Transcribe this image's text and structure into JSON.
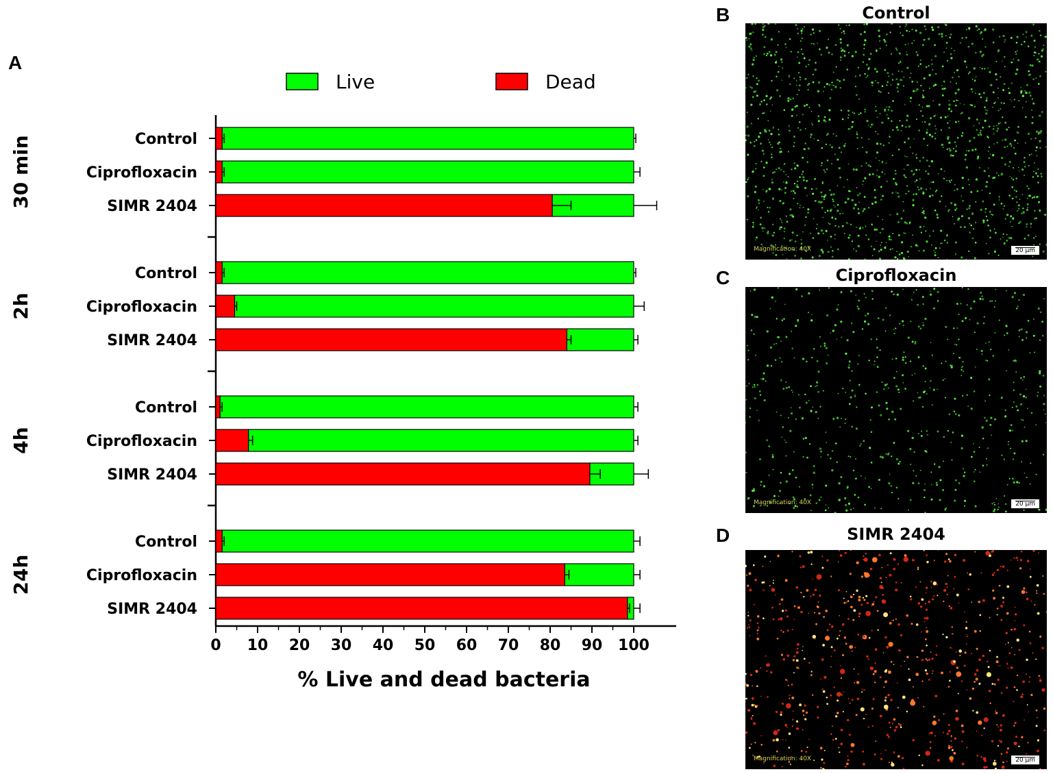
{
  "panel_a": {
    "letter": "A"
  },
  "chart_data": {
    "type": "bar",
    "orientation": "horizontal",
    "stacked": true,
    "xlabel": "% Live and dead bacteria",
    "xlim": [
      0,
      110
    ],
    "xticks": [
      0,
      10,
      20,
      30,
      40,
      50,
      60,
      70,
      80,
      90,
      100
    ],
    "legend_placement": "top",
    "series": [
      {
        "name": "Live",
        "color": "#00ff00"
      },
      {
        "name": "Dead",
        "color": "#ff0000"
      }
    ],
    "groups": [
      {
        "label": "30 min",
        "rows": [
          {
            "category": "Control",
            "dead": 1.5,
            "live": 98.5,
            "dead_err": 0.5,
            "total_err": 0.5
          },
          {
            "category": "Ciprofloxacin",
            "dead": 1.5,
            "live": 98.5,
            "dead_err": 0.5,
            "total_err": 1.5
          },
          {
            "category": "SIMR 2404",
            "dead": 80.5,
            "live": 19.5,
            "dead_err": 4.5,
            "total_err": 5.5
          }
        ]
      },
      {
        "label": "2h",
        "rows": [
          {
            "category": "Control",
            "dead": 1.5,
            "live": 98.5,
            "dead_err": 0.5,
            "total_err": 0.5
          },
          {
            "category": "Ciprofloxacin",
            "dead": 4.5,
            "live": 95.5,
            "dead_err": 0.5,
            "total_err": 2.5
          },
          {
            "category": "SIMR 2404",
            "dead": 84.0,
            "live": 16.0,
            "dead_err": 1.0,
            "total_err": 1.0
          }
        ]
      },
      {
        "label": "4h",
        "rows": [
          {
            "category": "Control",
            "dead": 1.0,
            "live": 99.0,
            "dead_err": 0.5,
            "total_err": 1.0
          },
          {
            "category": "Ciprofloxacin",
            "dead": 7.8,
            "live": 92.2,
            "dead_err": 1.0,
            "total_err": 1.0
          },
          {
            "category": "SIMR 2404",
            "dead": 89.5,
            "live": 10.5,
            "dead_err": 2.5,
            "total_err": 3.5
          }
        ]
      },
      {
        "label": "24h",
        "rows": [
          {
            "category": "Control",
            "dead": 1.5,
            "live": 98.5,
            "dead_err": 0.5,
            "total_err": 1.5
          },
          {
            "category": "Ciprofloxacin",
            "dead": 83.5,
            "live": 16.5,
            "dead_err": 1.0,
            "total_err": 1.5
          },
          {
            "category": "SIMR 2404",
            "dead": 98.5,
            "live": 1.5,
            "dead_err": 0.5,
            "total_err": 1.5
          }
        ]
      }
    ]
  },
  "micrographs": [
    {
      "letter": "B",
      "title": "Control",
      "magnification": "Magnification: 40X",
      "scale": "20 µm",
      "stain": "green",
      "density": 1400
    },
    {
      "letter": "C",
      "title": "Ciprofloxacin",
      "magnification": "Magnification: 40X",
      "scale": "20 µm",
      "stain": "green",
      "density": 650
    },
    {
      "letter": "D",
      "title": "SIMR 2404",
      "magnification": "Magnification: 40X",
      "scale": "20 µm",
      "stain": "red",
      "density": 750
    }
  ]
}
